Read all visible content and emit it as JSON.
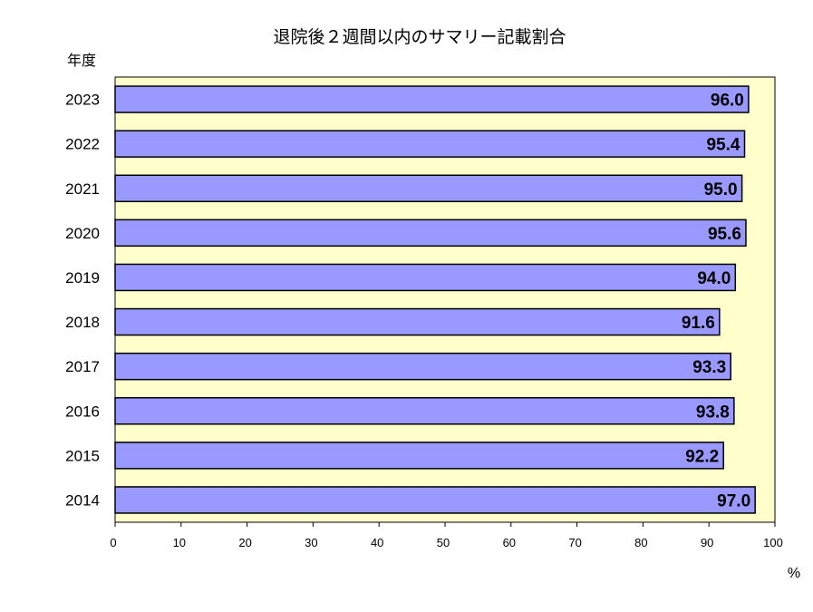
{
  "chart_data": {
    "type": "bar",
    "orientation": "horizontal",
    "title": "退院後２週間以内のサマリー記載割合",
    "ylabel": "年度",
    "xlabel": "%",
    "categories": [
      "2023",
      "2022",
      "2021",
      "2020",
      "2019",
      "2018",
      "2017",
      "2016",
      "2015",
      "2014"
    ],
    "values": [
      96.0,
      95.4,
      95.0,
      95.6,
      94.0,
      91.6,
      93.3,
      93.8,
      92.2,
      97.0
    ],
    "data_labels": [
      "96.0",
      "95.4",
      "95.0",
      "95.6",
      "94.0",
      "91.6",
      "93.3",
      "93.8",
      "92.2",
      "97.0"
    ],
    "xlim": [
      0,
      100
    ],
    "x_ticks": [
      "0",
      "10",
      "20",
      "30",
      "40",
      "50",
      "60",
      "70",
      "80",
      "90",
      "100"
    ],
    "grid": false,
    "legend": "none",
    "colors": {
      "bar_fill": "#9999ff",
      "bar_stroke": "#000000",
      "plot_background": "#ffffcc",
      "text": "#000000"
    }
  }
}
